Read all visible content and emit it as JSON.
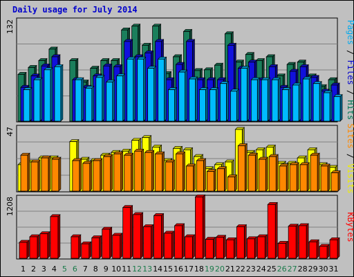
{
  "title": "Daily usage for July 2014",
  "chart_data": [
    {
      "type": "bar",
      "panel": "hits-files-pages",
      "ylim": [
        0,
        132
      ],
      "ytick": "132",
      "ylabel_words": [
        {
          "text": "Pages",
          "color": "#00aaee"
        },
        {
          "text": " / ",
          "color": "#000000"
        },
        {
          "text": "Files",
          "color": "#0000cc"
        },
        {
          "text": " / ",
          "color": "#000000"
        },
        {
          "text": "Hits",
          "color": "#007755"
        }
      ],
      "series": [
        {
          "name": "Hits",
          "color": "#1b7f5c",
          "values": [
            62,
            71,
            80,
            95,
            null,
            80,
            52,
            70,
            80,
            80,
            120,
            125,
            100,
            125,
            63,
            85,
            118,
            67,
            68,
            74,
            115,
            78,
            88,
            80,
            85,
            60,
            75,
            78,
            60,
            46,
            55
          ]
        },
        {
          "name": "Files",
          "color": "#1111dd",
          "values": [
            45,
            60,
            73,
            85,
            null,
            55,
            45,
            60,
            73,
            72,
            105,
            85,
            90,
            105,
            55,
            75,
            105,
            55,
            55,
            55,
            100,
            70,
            78,
            55,
            72,
            45,
            66,
            72,
            58,
            40,
            48
          ]
        },
        {
          "name": "Pages",
          "color": "#00bbff",
          "values": [
            42,
            55,
            68,
            72,
            null,
            55,
            44,
            58,
            52,
            60,
            82,
            82,
            70,
            82,
            42,
            65,
            56,
            42,
            42,
            50,
            40,
            70,
            55,
            55,
            55,
            42,
            48,
            56,
            50,
            38,
            33
          ]
        }
      ]
    },
    {
      "type": "bar",
      "panel": "visits-sites",
      "ylim": [
        0,
        47
      ],
      "ytick": "47",
      "ylabel_words": [
        {
          "text": "Sites",
          "color": "#ff8800"
        },
        {
          "text": " / ",
          "color": "#000000"
        },
        {
          "text": "Visits",
          "color": "#eeee00"
        }
      ],
      "series": [
        {
          "name": "Visits",
          "color": "#ffff00",
          "values": [
            20,
            22,
            25,
            25,
            null,
            37,
            24,
            23,
            27,
            29,
            30,
            38,
            40,
            33,
            23,
            32,
            31,
            26,
            17,
            20,
            22,
            46,
            29,
            31,
            33,
            21,
            21,
            25,
            31,
            20,
            18
          ]
        },
        {
          "name": "Sites",
          "color": "#ff8800",
          "values": [
            27,
            22,
            25,
            24,
            null,
            23,
            21,
            23,
            26,
            28,
            27,
            30,
            29,
            28,
            22,
            28,
            19,
            23,
            15,
            17,
            11,
            34,
            27,
            24,
            26,
            19,
            20,
            20,
            27,
            19,
            14
          ]
        }
      ]
    },
    {
      "type": "bar",
      "panel": "kbytes",
      "ylim": [
        0,
        1208
      ],
      "ytick": "1208",
      "ylabel_words": [
        {
          "text": "KBytes",
          "color": "#ff0000"
        }
      ],
      "series": [
        {
          "name": "KBytes",
          "color": "#ff0000",
          "values": [
            330,
            440,
            500,
            840,
            null,
            440,
            300,
            420,
            590,
            470,
            1020,
            880,
            640,
            860,
            510,
            660,
            440,
            1230,
            390,
            430,
            380,
            640,
            400,
            440,
            1080,
            310,
            650,
            660,
            340,
            250,
            380
          ]
        }
      ]
    }
  ],
  "days": [
    "1",
    "2",
    "3",
    "4",
    "5",
    "6",
    "7",
    "8",
    "9",
    "10",
    "11",
    "12",
    "13",
    "14",
    "15",
    "16",
    "17",
    "18",
    "19",
    "20",
    "21",
    "22",
    "23",
    "24",
    "25",
    "26",
    "27",
    "28",
    "29",
    "30",
    "31"
  ],
  "weekend_days": [
    5,
    6,
    12,
    13,
    19,
    20,
    26,
    27
  ]
}
